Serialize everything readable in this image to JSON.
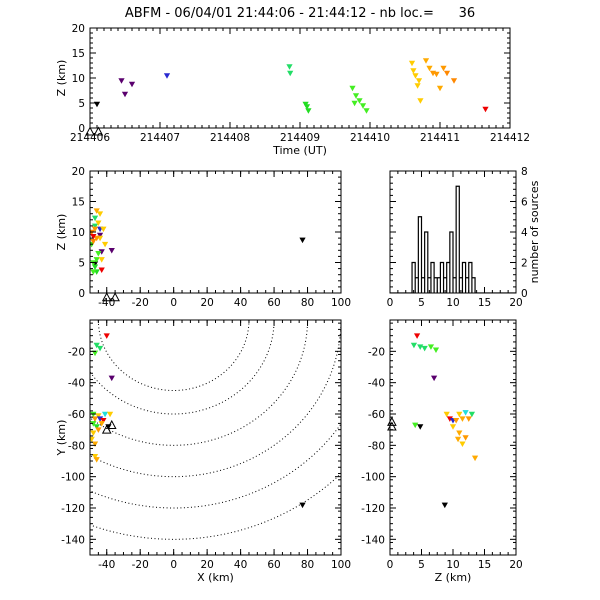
{
  "title": "ABFM - 06/04/01 21:44:06 - 21:44:12 - nb loc.=      36",
  "chart_data": [
    {
      "id": "time_height",
      "type": "scatter",
      "xlabel": "Time (UT)",
      "ylabel": "Z (km)",
      "xlim": [
        214406,
        214412
      ],
      "ylim": [
        0,
        20
      ],
      "xticks": [
        "214406",
        "214407",
        "214408",
        "214409",
        "214410",
        "214411",
        "214412"
      ],
      "yticks": [
        "0",
        "5",
        "10",
        "15",
        "20"
      ],
      "points": [
        {
          "x": 214406.1,
          "y": 4.8,
          "color": "#000000"
        },
        {
          "x": 214406.45,
          "y": 9.5,
          "color": "#5a006e"
        },
        {
          "x": 214406.5,
          "y": 6.8,
          "color": "#5a006e"
        },
        {
          "x": 214406.6,
          "y": 8.8,
          "color": "#5a006e"
        },
        {
          "x": 214407.1,
          "y": 10.5,
          "color": "#2828d0"
        },
        {
          "x": 214408.85,
          "y": 12.3,
          "color": "#22dd66"
        },
        {
          "x": 214408.86,
          "y": 11.0,
          "color": "#22dd66"
        },
        {
          "x": 214409.1,
          "y": 4.3,
          "color": "#22dd22"
        },
        {
          "x": 214409.12,
          "y": 3.5,
          "color": "#22dd22"
        },
        {
          "x": 214409.08,
          "y": 4.8,
          "color": "#22dd22"
        },
        {
          "x": 214409.75,
          "y": 8.0,
          "color": "#44ee22"
        },
        {
          "x": 214409.8,
          "y": 6.5,
          "color": "#44ee22"
        },
        {
          "x": 214409.85,
          "y": 5.5,
          "color": "#44ee22"
        },
        {
          "x": 214409.9,
          "y": 4.5,
          "color": "#44ee22"
        },
        {
          "x": 214409.78,
          "y": 5.0,
          "color": "#44ee22"
        },
        {
          "x": 214409.95,
          "y": 3.5,
          "color": "#44ee22"
        },
        {
          "x": 214410.6,
          "y": 13.0,
          "color": "#ffcc00"
        },
        {
          "x": 214410.62,
          "y": 11.5,
          "color": "#ffcc00"
        },
        {
          "x": 214410.65,
          "y": 10.5,
          "color": "#ffcc00"
        },
        {
          "x": 214410.7,
          "y": 9.5,
          "color": "#ffcc00"
        },
        {
          "x": 214410.68,
          "y": 8.5,
          "color": "#ffcc00"
        },
        {
          "x": 214410.72,
          "y": 5.5,
          "color": "#ffcc00"
        },
        {
          "x": 214410.8,
          "y": 13.5,
          "color": "#ffaa00"
        },
        {
          "x": 214410.85,
          "y": 12.0,
          "color": "#ffaa00"
        },
        {
          "x": 214410.9,
          "y": 11.0,
          "color": "#ff9900"
        },
        {
          "x": 214410.95,
          "y": 10.8,
          "color": "#ff9900"
        },
        {
          "x": 214411.0,
          "y": 8.0,
          "color": "#ffaa00"
        },
        {
          "x": 214411.05,
          "y": 12.0,
          "color": "#ff9900"
        },
        {
          "x": 214411.1,
          "y": 11.0,
          "color": "#ff8800"
        },
        {
          "x": 214411.2,
          "y": 9.5,
          "color": "#ff8800"
        },
        {
          "x": 214411.65,
          "y": 3.8,
          "color": "#ee0000"
        }
      ],
      "stations": [
        {
          "x": 214406.0,
          "y": -0.7
        },
        {
          "x": 214406.12,
          "y": -0.7
        }
      ]
    },
    {
      "id": "x_height",
      "type": "scatter",
      "xlabel": "",
      "ylabel": "Z (km)",
      "xlim": [
        -50,
        100
      ],
      "ylim": [
        0,
        20
      ],
      "xticks": [
        "-40",
        "-20",
        "0",
        "20",
        "40",
        "60",
        "80",
        "100"
      ],
      "yticks": [
        "0",
        "5",
        "10",
        "15",
        "20"
      ],
      "points": [
        {
          "x": -47,
          "y": 4.8,
          "color": "#000000"
        },
        {
          "x": -44,
          "y": 9.5,
          "color": "#5a006e"
        },
        {
          "x": -43,
          "y": 6.8,
          "color": "#5a006e"
        },
        {
          "x": -37,
          "y": 7.0,
          "color": "#5a006e"
        },
        {
          "x": -44,
          "y": 10.5,
          "color": "#2828d0"
        },
        {
          "x": -47,
          "y": 12.3,
          "color": "#22dd66"
        },
        {
          "x": -47,
          "y": 11.0,
          "color": "#22dd66"
        },
        {
          "x": -47,
          "y": 4.3,
          "color": "#22dd22"
        },
        {
          "x": -46,
          "y": 3.5,
          "color": "#22dd22"
        },
        {
          "x": -48,
          "y": 5.0,
          "color": "#44ee22"
        },
        {
          "x": -45,
          "y": 6.5,
          "color": "#44ee22"
        },
        {
          "x": -49,
          "y": 8.0,
          "color": "#44ee22"
        },
        {
          "x": -48,
          "y": 3.5,
          "color": "#44ee22"
        },
        {
          "x": -46,
          "y": 5.5,
          "color": "#44ee22"
        },
        {
          "x": -44,
          "y": 13.0,
          "color": "#ffcc00"
        },
        {
          "x": -45,
          "y": 11.5,
          "color": "#ffcc00"
        },
        {
          "x": -42,
          "y": 10.5,
          "color": "#ffcc00"
        },
        {
          "x": -44,
          "y": 9.0,
          "color": "#ffcc00"
        },
        {
          "x": -41,
          "y": 8.0,
          "color": "#ffcc00"
        },
        {
          "x": -43,
          "y": 5.5,
          "color": "#ffcc00"
        },
        {
          "x": -46,
          "y": 13.5,
          "color": "#ffaa00"
        },
        {
          "x": -47,
          "y": 10.5,
          "color": "#ff9900"
        },
        {
          "x": -46,
          "y": 9.0,
          "color": "#ff9900"
        },
        {
          "x": -49,
          "y": 10.0,
          "color": "#ff8800"
        },
        {
          "x": -48,
          "y": 8.5,
          "color": "#ff8800"
        },
        {
          "x": -48,
          "y": 9.3,
          "color": "#ee0000"
        },
        {
          "x": -43,
          "y": 3.8,
          "color": "#ee0000"
        },
        {
          "x": 77,
          "y": 8.7,
          "color": "#000000"
        }
      ],
      "stations": [
        {
          "x": -40,
          "y": -0.7
        },
        {
          "x": -35,
          "y": -0.7
        }
      ]
    },
    {
      "id": "z_histogram",
      "type": "bar",
      "xlabel": "",
      "ylabel": "number of sources",
      "xlim": [
        0,
        20
      ],
      "ylim": [
        0,
        8
      ],
      "xticks": [
        "0",
        "5",
        "10",
        "15",
        "20"
      ],
      "yticks": [
        "0",
        "2",
        "4",
        "6",
        "8"
      ],
      "bins": [
        {
          "x0": 3.5,
          "x1": 4.0,
          "count": 2
        },
        {
          "x0": 4.0,
          "x1": 4.5,
          "count": 1
        },
        {
          "x0": 4.5,
          "x1": 5.0,
          "count": 5
        },
        {
          "x0": 5.0,
          "x1": 5.5,
          "count": 1
        },
        {
          "x0": 5.5,
          "x1": 6.0,
          "count": 4
        },
        {
          "x0": 6.0,
          "x1": 6.5,
          "count": 1
        },
        {
          "x0": 6.5,
          "x1": 7.0,
          "count": 2
        },
        {
          "x0": 7.0,
          "x1": 7.5,
          "count": 1
        },
        {
          "x0": 7.5,
          "x1": 8.0,
          "count": 1
        },
        {
          "x0": 8.0,
          "x1": 8.5,
          "count": 2
        },
        {
          "x0": 8.5,
          "x1": 9.0,
          "count": 1
        },
        {
          "x0": 9.0,
          "x1": 9.5,
          "count": 2
        },
        {
          "x0": 9.5,
          "x1": 10.0,
          "count": 4
        },
        {
          "x0": 10.0,
          "x1": 10.5,
          "count": 1
        },
        {
          "x0": 10.5,
          "x1": 11.0,
          "count": 7
        },
        {
          "x0": 11.0,
          "x1": 11.5,
          "count": 1
        },
        {
          "x0": 11.5,
          "x1": 12.0,
          "count": 2
        },
        {
          "x0": 12.0,
          "x1": 12.5,
          "count": 1
        },
        {
          "x0": 12.5,
          "x1": 13.0,
          "count": 2
        },
        {
          "x0": 13.0,
          "x1": 13.5,
          "count": 1
        }
      ]
    },
    {
      "id": "x_y_map",
      "type": "scatter",
      "xlabel": "X (km)",
      "ylabel": "Y (km)",
      "xlim": [
        -50,
        100
      ],
      "ylim": [
        -150,
        0
      ],
      "xticks": [
        "-40",
        "-20",
        "0",
        "20",
        "40",
        "60",
        "80",
        "100"
      ],
      "yticks": [
        "-140",
        "-120",
        "-100",
        "-80",
        "-60",
        "-40",
        "-20"
      ],
      "points": [
        {
          "x": -40,
          "y": -10,
          "color": "#ee0000"
        },
        {
          "x": -46,
          "y": -16,
          "color": "#22dd66"
        },
        {
          "x": -44,
          "y": -18,
          "color": "#22dd66"
        },
        {
          "x": -47,
          "y": -21,
          "color": "#44ee22"
        },
        {
          "x": -37,
          "y": -37,
          "color": "#5a006e"
        },
        {
          "x": -48,
          "y": -60,
          "color": "#44ee22"
        },
        {
          "x": -45,
          "y": -61,
          "color": "#ffcc00"
        },
        {
          "x": -41,
          "y": -60,
          "color": "#22dddd"
        },
        {
          "x": -38,
          "y": -60,
          "color": "#ffcc00"
        },
        {
          "x": -47,
          "y": -63,
          "color": "#ff9900"
        },
        {
          "x": -44,
          "y": -63,
          "color": "#2828d0"
        },
        {
          "x": -42,
          "y": -64,
          "color": "#ee0000"
        },
        {
          "x": -48,
          "y": -66,
          "color": "#44ee22"
        },
        {
          "x": -46,
          "y": -68,
          "color": "#22dd22"
        },
        {
          "x": -43,
          "y": -66,
          "color": "#ffaa00"
        },
        {
          "x": -39,
          "y": -68,
          "color": "#000000"
        },
        {
          "x": -48,
          "y": -72,
          "color": "#ffcc00"
        },
        {
          "x": -45,
          "y": -70,
          "color": "#ff9900"
        },
        {
          "x": -49,
          "y": -76,
          "color": "#ffcc00"
        },
        {
          "x": -47,
          "y": -79,
          "color": "#ffaa00"
        },
        {
          "x": -47,
          "y": -87,
          "color": "#ffcc00"
        },
        {
          "x": -46,
          "y": -89,
          "color": "#ffaa00"
        },
        {
          "x": 77,
          "y": -118,
          "color": "#000000"
        }
      ],
      "stations": [
        {
          "x": -40,
          "y": -70
        },
        {
          "x": -37,
          "y": -67
        }
      ],
      "range_circles_km": [
        45,
        60,
        80,
        100,
        120,
        140
      ]
    },
    {
      "id": "z_y",
      "type": "scatter",
      "xlabel": "Z (km)",
      "ylabel": "",
      "xlim": [
        0,
        20
      ],
      "ylim": [
        -150,
        0
      ],
      "xticks": [
        "0",
        "5",
        "10",
        "15",
        "20"
      ],
      "yticks": [
        "-140",
        "-120",
        "-100",
        "-80",
        "-60",
        "-40",
        "-20"
      ],
      "points": [
        {
          "x": 4.3,
          "y": -10,
          "color": "#ee0000"
        },
        {
          "x": 3.8,
          "y": -16,
          "color": "#22dd66"
        },
        {
          "x": 4.8,
          "y": -17,
          "color": "#22dd66"
        },
        {
          "x": 5.5,
          "y": -18,
          "color": "#22dd66"
        },
        {
          "x": 6.5,
          "y": -17,
          "color": "#44ee22"
        },
        {
          "x": 7.3,
          "y": -19,
          "color": "#44ee22"
        },
        {
          "x": 7.0,
          "y": -37,
          "color": "#5a006e"
        },
        {
          "x": 9.0,
          "y": -60,
          "color": "#ffcc00"
        },
        {
          "x": 11.0,
          "y": -60,
          "color": "#ffcc00"
        },
        {
          "x": 12.0,
          "y": -59,
          "color": "#22dddd"
        },
        {
          "x": 13.0,
          "y": -60,
          "color": "#22dd66"
        },
        {
          "x": 9.5,
          "y": -63,
          "color": "#ee0000"
        },
        {
          "x": 10.0,
          "y": -64,
          "color": "#2828d0"
        },
        {
          "x": 10.5,
          "y": -64,
          "color": "#ff9900"
        },
        {
          "x": 11.5,
          "y": -63,
          "color": "#ffaa00"
        },
        {
          "x": 12.5,
          "y": -63,
          "color": "#ff9900"
        },
        {
          "x": 4.0,
          "y": -67,
          "color": "#44ee22"
        },
        {
          "x": 4.8,
          "y": -68,
          "color": "#000000"
        },
        {
          "x": 10.0,
          "y": -68,
          "color": "#ffcc00"
        },
        {
          "x": 11.0,
          "y": -72,
          "color": "#ffaa00"
        },
        {
          "x": 12.0,
          "y": -75,
          "color": "#ff9900"
        },
        {
          "x": 10.8,
          "y": -76,
          "color": "#ffaa00"
        },
        {
          "x": 11.5,
          "y": -79,
          "color": "#ffcc00"
        },
        {
          "x": 13.5,
          "y": -88,
          "color": "#ffaa00"
        },
        {
          "x": 8.7,
          "y": -118,
          "color": "#000000"
        }
      ],
      "stations": [
        {
          "x": 0.3,
          "y": -68
        },
        {
          "x": 0.3,
          "y": -65
        }
      ]
    }
  ]
}
